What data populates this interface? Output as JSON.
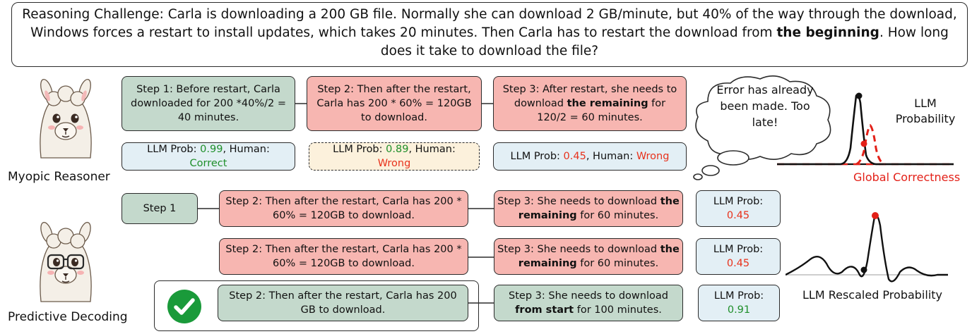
{
  "challenge": {
    "text_before": "Reasoning Challenge: Carla is downloading a 200 GB file. Normally she can download 2 GB/minute, but 40% of the way through the download, Windows forces a restart to install updates, which takes 20 minutes. Then Carla has to restart the download from ",
    "bold": "the beginning",
    "text_after": ". How long does it take to download the file?"
  },
  "myopic": {
    "label": "Myopic Reasoner",
    "step1": "Step 1: Before restart, Carla downloaded for 200 *40%/2 = 40 minutes.",
    "step2": "Step 2: Then after the restart, Carla has 200 * 60% = 120GB to download.",
    "step3_a": "Step 3: After restart, she needs to download ",
    "step3_bold": "the remaining",
    "step3_b": " for 120/2 = 60 minutes.",
    "prob1": {
      "prefix": "LLM Prob: ",
      "value": "0.99",
      "mid": ", Human: ",
      "human": "Correct"
    },
    "prob2": {
      "prefix": "LLM Prob: ",
      "value": "0.89",
      "mid": ", Human: ",
      "human": "Wrong"
    },
    "prob3": {
      "prefix": "LLM Prob: ",
      "value": "0.45",
      "mid": ", Human: ",
      "human": "Wrong"
    },
    "thought": "Error has already been made. Too late!",
    "plot_title": "LLM Probability",
    "plot_legend": "Global Correctness"
  },
  "predictive": {
    "label": "Predictive Decoding",
    "step1": "Step 1",
    "row1": {
      "step2": "Step 2:  Then after the restart, Carla has 200 * 60% = 120GB to download.",
      "step3_a": "Step 3: She needs to download ",
      "step3_bold": "the remaining",
      "step3_b": " for 60 minutes.",
      "prob_prefix": "LLM Prob: ",
      "prob": "0.45"
    },
    "row2": {
      "step2": "Step 2:  Then after the restart, Carla has 200 * 60% = 120GB to download.",
      "step3_a": "Step 3: She needs to download ",
      "step3_bold": "the remaining",
      "step3_b": " for 60 minutes.",
      "prob_prefix": "LLM Prob: ",
      "prob": "0.45"
    },
    "row3": {
      "step2": "Step 2:  Then after the restart, Carla has 200 GB to download.",
      "step3_a": "Step 3: She needs to download ",
      "step3_bold": "from start",
      "step3_b": " for 100 minutes.",
      "prob_prefix": "LLM Prob: ",
      "prob": "0.91"
    },
    "plot_title": "LLM Rescaled Probability"
  }
}
